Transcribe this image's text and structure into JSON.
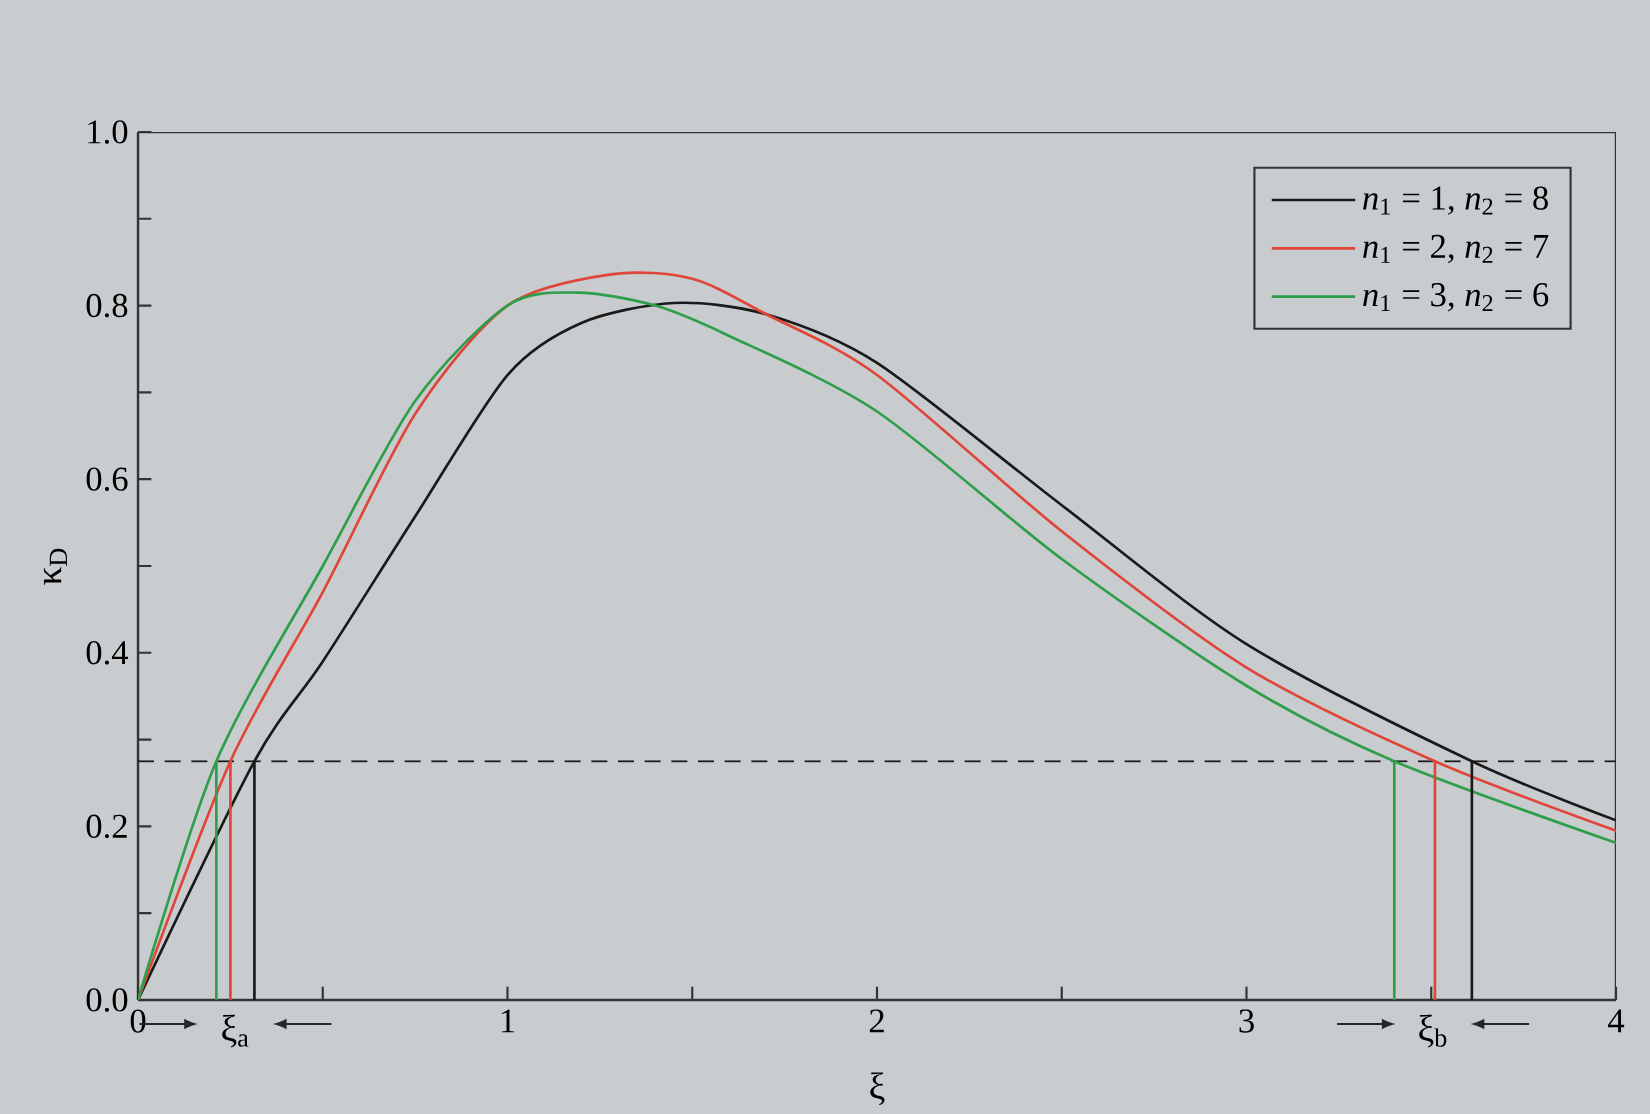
{
  "chart_data": {
    "type": "line",
    "xlabel": "ξ",
    "ylabel": "κ$_{D}$",
    "xlim": [
      0,
      4
    ],
    "ylim": [
      0,
      1
    ],
    "xticks": [
      0,
      {
        "value": 0.5,
        "label": null
      },
      1,
      {
        "value": 1.5,
        "label": null
      },
      2,
      {
        "value": 2.5,
        "label": null
      },
      3,
      {
        "value": 3.5,
        "label": null
      },
      4
    ],
    "yticks": [
      {
        "value": 0,
        "label": "0.0"
      },
      {
        "value": 0.1,
        "label": null
      },
      {
        "value": 0.2,
        "label": "0.2"
      },
      {
        "value": 0.3,
        "label": null
      },
      {
        "value": 0.4,
        "label": "0.4"
      },
      {
        "value": 0.5,
        "label": null
      },
      {
        "value": 0.6,
        "label": "0.6"
      },
      {
        "value": 0.7,
        "label": null
      },
      {
        "value": 0.8,
        "label": "0.8"
      },
      {
        "value": 0.9,
        "label": null
      },
      {
        "value": 1.0,
        "label": "1.0"
      }
    ],
    "legend": "top right",
    "series": [
      {
        "name": "*n*$_{1}$ = 1, *n*$_{2}$ = 8",
        "color": "#1a1a1a",
        "x": [
          0,
          0.315,
          0.5,
          0.75,
          1.0,
          1.2,
          1.45,
          1.7,
          2.0,
          2.5,
          3.0,
          3.61,
          4.0
        ],
        "values": [
          0,
          0.275,
          0.39,
          0.557,
          0.72,
          0.78,
          0.803,
          0.79,
          0.734,
          0.57,
          0.41,
          0.275,
          0.207
        ]
      },
      {
        "name": "*n*$_{1}$ = 2, *n*$_{2}$ = 7",
        "color": "#e0453a",
        "x": [
          0,
          0.25,
          0.5,
          0.75,
          1.0,
          1.28,
          1.5,
          1.7,
          2.0,
          2.5,
          3.0,
          3.51,
          4.0
        ],
        "values": [
          0,
          0.275,
          0.47,
          0.675,
          0.8,
          0.836,
          0.831,
          0.79,
          0.72,
          0.54,
          0.383,
          0.275,
          0.195
        ]
      },
      {
        "name": "*n*$_{1}$ = 3, *n*$_{2}$ = 6",
        "color": "#2e9e4a",
        "x": [
          0,
          0.212,
          0.5,
          0.75,
          1.0,
          1.19,
          1.4,
          1.6,
          2.0,
          2.5,
          3.0,
          3.4,
          4.0
        ],
        "values": [
          0,
          0.275,
          0.5,
          0.69,
          0.8,
          0.815,
          0.8,
          0.765,
          0.678,
          0.508,
          0.362,
          0.275,
          0.181
        ]
      },
      {
        "color": "#2e9e4a",
        "x": [
          0.212,
          0.212
        ],
        "values": [
          0,
          0.275
        ]
      },
      {
        "color": "#e0453a",
        "x": [
          0.25,
          0.25
        ],
        "values": [
          0,
          0.275
        ]
      },
      {
        "color": "#1a1a1a",
        "x": [
          0.315,
          0.315
        ],
        "values": [
          0,
          0.275
        ]
      },
      {
        "color": "#2e9e4a",
        "x": [
          3.4,
          3.4
        ],
        "values": [
          0,
          0.275
        ]
      },
      {
        "color": "#e0453a",
        "x": [
          3.51,
          3.51
        ],
        "values": [
          0,
          0.275
        ]
      },
      {
        "color": "#1a1a1a",
        "x": [
          3.61,
          3.61
        ],
        "values": [
          0,
          0.275
        ]
      }
    ],
    "ref_lines": [
      {
        "axis": "y",
        "value": 0.275,
        "color": "#1a1a1a",
        "line_style": "dashed"
      }
    ],
    "annotations": [
      "ξ$_{a}$",
      "ξ$_{b}$"
    ]
  }
}
